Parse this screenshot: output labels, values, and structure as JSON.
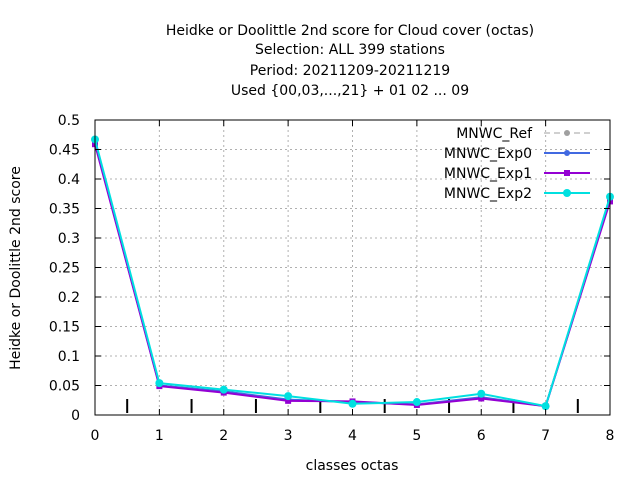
{
  "chart_data": {
    "type": "line",
    "title": [
      "Heidke or Doolittle 2nd score  for Cloud cover (octas)",
      "Selection: ALL    399 stations",
      "Period: 20211209-20211219",
      "Used {00,03,...,21} + 01 02 ... 09"
    ],
    "xlabel": "classes octas",
    "ylabel": "Heidke or Doolittle 2nd score",
    "xlim": [
      0,
      8
    ],
    "ylim": [
      0,
      0.5
    ],
    "x_ticks": [
      "0",
      "1",
      "2",
      "3",
      "4",
      "5",
      "6",
      "7",
      "8"
    ],
    "y_ticks": [
      "0",
      "0.05",
      "0.1",
      "0.15",
      "0.2",
      "0.25",
      "0.3",
      "0.35",
      "0.4",
      "0.45",
      "0.5"
    ],
    "grid": true,
    "legend_position": "top-right",
    "x": [
      0,
      1,
      2,
      3,
      4,
      5,
      6,
      7,
      8
    ],
    "series": [
      {
        "name": "MNWC_Ref",
        "color": "#a0a0a0",
        "dashed": true,
        "values": [
          0.461,
          0.05,
          0.04,
          0.026,
          0.022,
          0.018,
          0.03,
          0.015,
          0.364
        ]
      },
      {
        "name": "MNWC_Exp0",
        "color": "#4169e1",
        "dashed": false,
        "values": [
          0.461,
          0.05,
          0.04,
          0.026,
          0.022,
          0.018,
          0.03,
          0.015,
          0.364
        ]
      },
      {
        "name": "MNWC_Exp1",
        "color": "#9400d3",
        "dashed": false,
        "values": [
          0.459,
          0.049,
          0.038,
          0.024,
          0.023,
          0.017,
          0.028,
          0.015,
          0.362
        ]
      },
      {
        "name": "MNWC_Exp2",
        "color": "#00e0e0",
        "dashed": false,
        "values": [
          0.467,
          0.054,
          0.043,
          0.032,
          0.019,
          0.022,
          0.036,
          0.015,
          0.37
        ]
      }
    ],
    "minor_x_ticks": [
      0.5,
      1.5,
      2.5,
      3.5,
      4.5,
      5.5,
      6.5,
      7.5
    ]
  }
}
